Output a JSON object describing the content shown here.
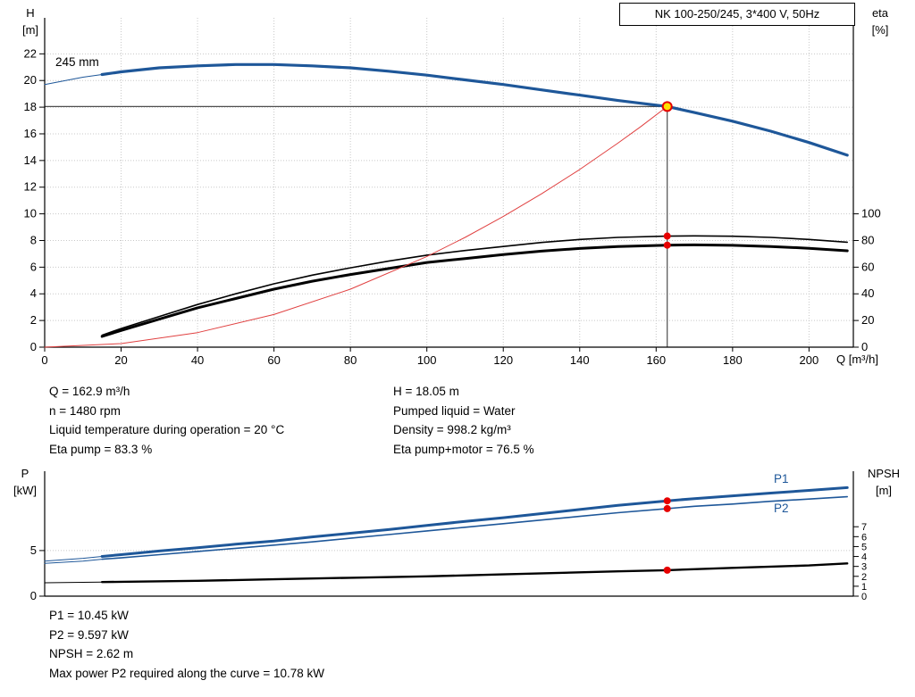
{
  "title_box": "NK 100-250/245, 3*400 V, 50Hz",
  "axis_labels": {
    "h1": "H",
    "h2": "[m]",
    "eta1": "eta",
    "eta2": "[%]",
    "q": "Q [m³/h]",
    "p1": "P",
    "p2": "[kW]",
    "npsh1": "NPSH",
    "npsh2": "[m]"
  },
  "curve_labels": {
    "impeller": "245 mm",
    "p1": "P1",
    "p2": "P2"
  },
  "info": {
    "left": [
      "Q = 162.9 m³/h",
      "n = 1480 rpm",
      "Liquid temperature during operation = 20 °C",
      "Eta pump = 83.3 %"
    ],
    "right": [
      "H = 18.05 m",
      "Pumped liquid = Water",
      "Density = 998.2 kg/m³",
      "Eta pump+motor = 76.5 %"
    ]
  },
  "footer": [
    "P1 = 10.45 kW",
    "P2 = 9.597 kW",
    "NPSH = 2.62 m",
    "Max power P2 required along the curve = 10.78 kW"
  ],
  "colors": {
    "curve_blue": "#1e5799",
    "curve_black": "#000000",
    "system_red": "#e04040",
    "marker_red": "#e60000",
    "marker_yellow": "#ffe000",
    "grid": "#c8c8c8",
    "duty_line": "#4d4d4d"
  },
  "duty_point": {
    "Q_m3h": 162.9,
    "H_m": 18.05,
    "n_rpm": 1480,
    "eta_pump_pct": 83.3,
    "eta_pump_motor_pct": 76.5,
    "P1_kW": 10.45,
    "P2_kW": 9.597,
    "NPSH_m": 2.62,
    "max_P2_along_curve_kW": 10.78,
    "pumped_liquid": "Water",
    "density_kg_m3": 998.2,
    "liquid_temp_C": 20
  },
  "chart_data": [
    {
      "id": "qh",
      "type": "line",
      "title": "NK 100-250/245, 3*400 V, 50Hz",
      "xlabel": "Q [m³/h]",
      "ylabel_left": "H [m]",
      "ylabel_right": "eta [%]",
      "x_range": [
        0,
        211.6
      ],
      "y_left_range": [
        0,
        24.7
      ],
      "y_right_range": [
        0,
        247
      ],
      "x_ticks": [
        0,
        20,
        40,
        60,
        80,
        100,
        120,
        140,
        160,
        180,
        200
      ],
      "y_left_ticks": [
        0,
        2,
        4,
        6,
        8,
        10,
        12,
        14,
        16,
        18,
        20,
        22
      ],
      "y_right_ticks": [
        0,
        20,
        40,
        60,
        80,
        100
      ],
      "grid_x": [
        20,
        40,
        60,
        80,
        100,
        120,
        140,
        160,
        180,
        200
      ],
      "grid_y": [
        2,
        4,
        6,
        8,
        10,
        12,
        14,
        16,
        18,
        20,
        22
      ],
      "crosshair": {
        "q": 162.9,
        "v": 18.05
      },
      "series": [
        {
          "id": "h-curve-245mm",
          "name": "245 mm",
          "axis": "left",
          "color": "curve_blue",
          "width": 3.2,
          "thin_until": 15,
          "points": [
            [
              0,
              19.7
            ],
            [
              10,
              20.25
            ],
            [
              15,
              20.45
            ],
            [
              20,
              20.65
            ],
            [
              30,
              20.95
            ],
            [
              40,
              21.1
            ],
            [
              50,
              21.2
            ],
            [
              60,
              21.2
            ],
            [
              70,
              21.1
            ],
            [
              80,
              20.95
            ],
            [
              90,
              20.7
            ],
            [
              100,
              20.4
            ],
            [
              110,
              20.05
            ],
            [
              120,
              19.7
            ],
            [
              130,
              19.3
            ],
            [
              140,
              18.9
            ],
            [
              150,
              18.5
            ],
            [
              162.9,
              18.05
            ],
            [
              170,
              17.6
            ],
            [
              180,
              16.95
            ],
            [
              190,
              16.2
            ],
            [
              200,
              15.35
            ],
            [
              210,
              14.4
            ]
          ]
        },
        {
          "id": "eta-pump-curve",
          "name": "Eta pump",
          "axis": "right",
          "color": "curve_black",
          "width": 1.6,
          "points": [
            [
              15,
              9
            ],
            [
              20,
              14
            ],
            [
              30,
              23
            ],
            [
              40,
              32
            ],
            [
              50,
              40
            ],
            [
              60,
              47.5
            ],
            [
              70,
              54
            ],
            [
              80,
              59.5
            ],
            [
              90,
              64.5
            ],
            [
              100,
              69
            ],
            [
              110,
              72.5
            ],
            [
              120,
              75.5
            ],
            [
              130,
              78.5
            ],
            [
              140,
              80.8
            ],
            [
              150,
              82.3
            ],
            [
              162.9,
              83.3
            ],
            [
              170,
              83.5
            ],
            [
              180,
              83.2
            ],
            [
              190,
              82.3
            ],
            [
              200,
              80.8
            ],
            [
              210,
              78.7
            ]
          ]
        },
        {
          "id": "eta-pump-motor-curve",
          "name": "Eta pump+motor",
          "axis": "right",
          "color": "curve_black",
          "width": 3.0,
          "points": [
            [
              15,
              8
            ],
            [
              20,
              12.5
            ],
            [
              30,
              21
            ],
            [
              40,
              29.5
            ],
            [
              50,
              36.5
            ],
            [
              60,
              43.5
            ],
            [
              70,
              49.5
            ],
            [
              80,
              54.5
            ],
            [
              90,
              59
            ],
            [
              100,
              63.5
            ],
            [
              110,
              66.5
            ],
            [
              120,
              69.5
            ],
            [
              130,
              72
            ],
            [
              140,
              74
            ],
            [
              150,
              75.5
            ],
            [
              162.9,
              76.5
            ],
            [
              170,
              76.7
            ],
            [
              180,
              76.4
            ],
            [
              190,
              75.5
            ],
            [
              200,
              74.2
            ],
            [
              210,
              72.3
            ]
          ]
        },
        {
          "id": "system-curve",
          "name": "System curve",
          "axis": "left",
          "color": "system_red",
          "width": 1,
          "points": [
            [
              0,
              0
            ],
            [
              20,
              0.27
            ],
            [
              40,
              1.09
            ],
            [
              60,
              2.45
            ],
            [
              80,
              4.35
            ],
            [
              100,
              6.8
            ],
            [
              110,
              8.23
            ],
            [
              120,
              9.8
            ],
            [
              130,
              11.5
            ],
            [
              140,
              13.33
            ],
            [
              150,
              15.3
            ],
            [
              156,
              16.55
            ],
            [
              162.9,
              18.05
            ]
          ]
        }
      ],
      "markers": [
        {
          "q": 162.9,
          "v": 83.3,
          "axis": "right",
          "kind": "red"
        },
        {
          "q": 162.9,
          "v": 76.5,
          "axis": "right",
          "kind": "red"
        },
        {
          "q": 162.9,
          "v": 18.05,
          "axis": "left",
          "kind": "duty"
        }
      ]
    },
    {
      "id": "power",
      "type": "line",
      "title": "Power and NPSH",
      "xlabel": "Q [m³/h]",
      "ylabel_left": "P [kW]",
      "ylabel_right": "NPSH [m]",
      "x_range": [
        0,
        211.6
      ],
      "y_left_range": [
        0,
        13.7
      ],
      "y_right_range": [
        0,
        12.6
      ],
      "x_ticks": [],
      "y_left_ticks": [
        0,
        5
      ],
      "y_right_ticks": [
        0,
        1,
        2,
        3,
        4,
        5,
        6,
        7
      ],
      "y_right_font": 11,
      "grid_x": [],
      "grid_y": [
        5
      ],
      "series": [
        {
          "id": "p1-curve",
          "name": "P1",
          "axis": "left",
          "color": "curve_blue",
          "width": 3.0,
          "thin_until": 15,
          "points": [
            [
              0,
              3.85
            ],
            [
              10,
              4.15
            ],
            [
              15,
              4.35
            ],
            [
              20,
              4.55
            ],
            [
              30,
              4.95
            ],
            [
              40,
              5.3
            ],
            [
              50,
              5.7
            ],
            [
              60,
              6.05
            ],
            [
              70,
              6.5
            ],
            [
              80,
              6.9
            ],
            [
              90,
              7.3
            ],
            [
              100,
              7.75
            ],
            [
              110,
              8.2
            ],
            [
              120,
              8.6
            ],
            [
              130,
              9.05
            ],
            [
              140,
              9.5
            ],
            [
              150,
              9.95
            ],
            [
              162.9,
              10.45
            ],
            [
              170,
              10.7
            ],
            [
              180,
              11.0
            ],
            [
              190,
              11.3
            ],
            [
              200,
              11.6
            ],
            [
              210,
              11.9
            ]
          ]
        },
        {
          "id": "p2-curve",
          "name": "P2",
          "axis": "left",
          "color": "curve_blue",
          "width": 1.6,
          "thin_until": 15,
          "points": [
            [
              0,
              3.6
            ],
            [
              10,
              3.85
            ],
            [
              15,
              4.05
            ],
            [
              20,
              4.2
            ],
            [
              30,
              4.55
            ],
            [
              40,
              4.9
            ],
            [
              50,
              5.25
            ],
            [
              60,
              5.6
            ],
            [
              70,
              5.95
            ],
            [
              80,
              6.35
            ],
            [
              90,
              6.75
            ],
            [
              100,
              7.15
            ],
            [
              110,
              7.55
            ],
            [
              120,
              7.95
            ],
            [
              130,
              8.35
            ],
            [
              140,
              8.75
            ],
            [
              150,
              9.15
            ],
            [
              162.9,
              9.597
            ],
            [
              170,
              9.85
            ],
            [
              180,
              10.1
            ],
            [
              190,
              10.4
            ],
            [
              200,
              10.65
            ],
            [
              210,
              10.9
            ]
          ]
        },
        {
          "id": "npsh-curve",
          "name": "NPSH",
          "axis": "right",
          "color": "curve_black",
          "width": 2.4,
          "thin_until": 15,
          "points": [
            [
              0,
              1.35
            ],
            [
              15,
              1.42
            ],
            [
              20,
              1.45
            ],
            [
              40,
              1.55
            ],
            [
              60,
              1.7
            ],
            [
              80,
              1.85
            ],
            [
              100,
              2.0
            ],
            [
              120,
              2.2
            ],
            [
              140,
              2.4
            ],
            [
              150,
              2.5
            ],
            [
              162.9,
              2.62
            ],
            [
              180,
              2.85
            ],
            [
              200,
              3.1
            ],
            [
              210,
              3.3
            ]
          ]
        }
      ],
      "markers": [
        {
          "q": 162.9,
          "v": 10.45,
          "axis": "left",
          "kind": "red"
        },
        {
          "q": 162.9,
          "v": 9.597,
          "axis": "left",
          "kind": "red"
        },
        {
          "q": 162.9,
          "v": 2.62,
          "axis": "right",
          "kind": "red"
        }
      ]
    }
  ]
}
